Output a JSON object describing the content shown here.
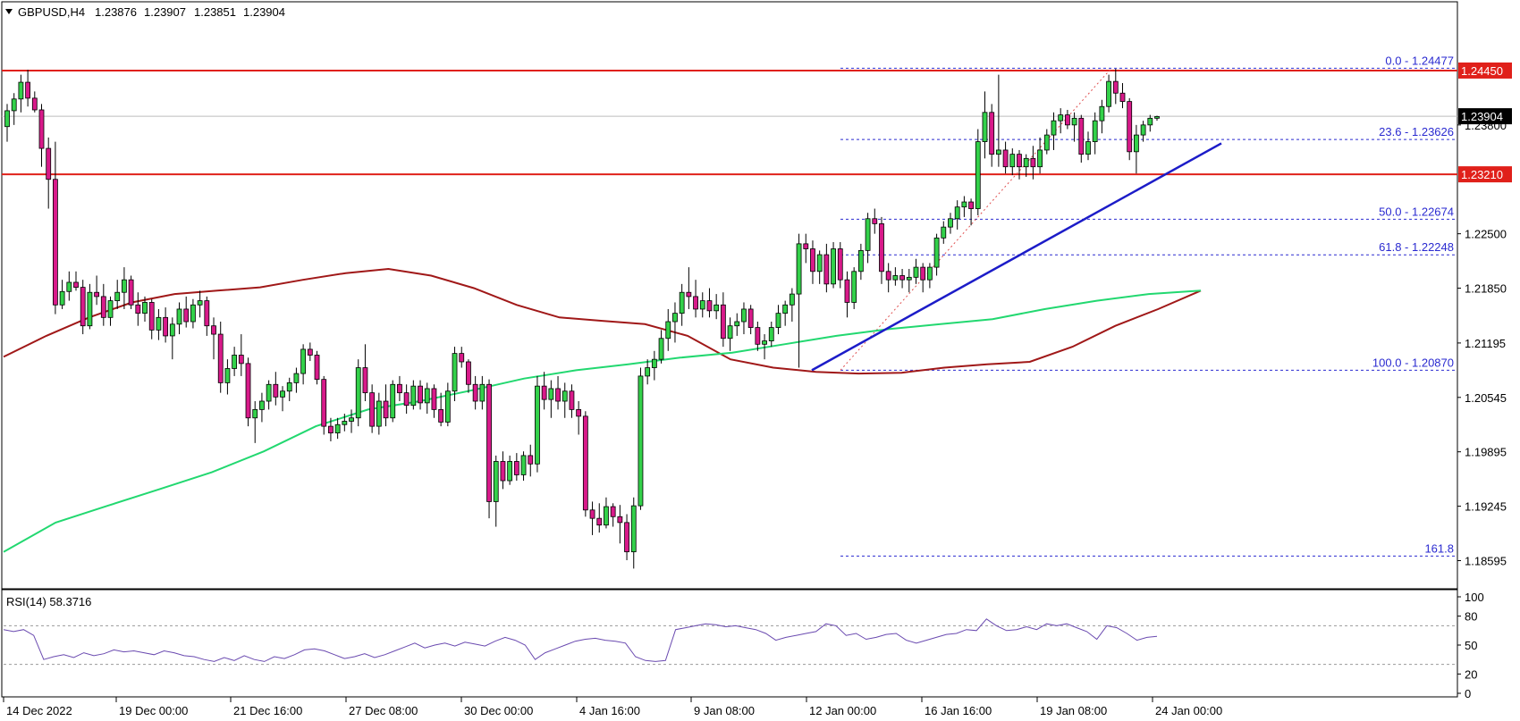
{
  "chart_data": {
    "type": "candlestick",
    "symbol": "GBPUSD,H4",
    "ohlc_header": [
      "1.23876",
      "1.23907",
      "1.23851",
      "1.23904"
    ],
    "price_axis_ticks": [
      "1.24450",
      "1.23800",
      "1.23210",
      "1.22500",
      "1.21850",
      "1.21195",
      "1.20545",
      "1.19895",
      "1.19245",
      "1.18595"
    ],
    "current_price_label": "1.23904",
    "price_range": [
      1.1828,
      1.2525
    ],
    "horizontal_levels": [
      {
        "price": 1.2445,
        "label": "1.24450",
        "color": "#e0201a"
      },
      {
        "price": 1.2321,
        "label": "1.23210",
        "color": "#e0201a"
      }
    ],
    "fib_levels": [
      {
        "label": "0.0 - 1.24477",
        "price": 1.24477
      },
      {
        "label": "23.6 - 1.23626",
        "price": 1.23626
      },
      {
        "label": "50.0 - 1.22674",
        "price": 1.22674
      },
      {
        "label": "61.8 - 1.22248",
        "price": 1.22248
      },
      {
        "label": "100.0 - 1.20870",
        "price": 1.2087
      },
      {
        "label": "161.8",
        "price": 1.1865
      }
    ],
    "time_labels": [
      "14 Dec 2022",
      "19 Dec 00:00",
      "21 Dec 16:00",
      "27 Dec 08:00",
      "30 Dec 00:00",
      "4 Jan 16:00",
      "9 Jan 08:00",
      "12 Jan 00:00",
      "16 Jan 16:00",
      "19 Jan 08:00",
      "24 Jan 00:00"
    ],
    "trendline": {
      "from_price": 1.2087,
      "to_price": 1.2358,
      "color": "#1c1cc8"
    },
    "ma_slow_color": "#a01818",
    "ma_fast_color": "#22d870",
    "ma_slow_closes": [
      1.2103,
      1.2128,
      1.215,
      1.2168,
      1.2178,
      1.2182,
      1.2186,
      1.2195,
      1.2203,
      1.2208,
      1.22,
      1.2185,
      1.2165,
      1.215,
      1.2146,
      1.2142,
      1.2128,
      1.21,
      1.209,
      1.2085,
      1.2083,
      1.2084,
      1.209,
      1.2094,
      1.2097,
      1.2115,
      1.214,
      1.216,
      1.2182
    ],
    "ma_fast_closes": [
      1.187,
      1.1905,
      1.1925,
      1.1945,
      1.1965,
      1.199,
      1.202,
      1.204,
      1.205,
      1.2063,
      1.2077,
      1.2087,
      1.2094,
      1.2102,
      1.2108,
      1.2118,
      1.2128,
      1.2136,
      1.2142,
      1.2148,
      1.216,
      1.217,
      1.2178,
      1.2182
    ],
    "candles": [
      [
        1.2378,
        1.2405,
        1.236,
        1.2397
      ],
      [
        1.2397,
        1.2418,
        1.238,
        1.2411
      ],
      [
        1.2411,
        1.244,
        1.2395,
        1.2431
      ],
      [
        1.2431,
        1.2446,
        1.2402,
        1.2412
      ],
      [
        1.2412,
        1.242,
        1.2395,
        1.2398
      ],
      [
        1.2398,
        1.2405,
        1.233,
        1.2352
      ],
      [
        1.2352,
        1.2365,
        1.228,
        1.2315
      ],
      [
        1.2315,
        1.236,
        1.2154,
        1.2165
      ],
      [
        1.2165,
        1.2195,
        1.216,
        1.2181
      ],
      [
        1.2181,
        1.2205,
        1.217,
        1.2192
      ],
      [
        1.2192,
        1.2205,
        1.2182,
        1.2186
      ],
      [
        1.2186,
        1.2195,
        1.213,
        1.214
      ],
      [
        1.214,
        1.219,
        1.2136,
        1.218
      ],
      [
        1.218,
        1.22,
        1.2165,
        1.2175
      ],
      [
        1.2175,
        1.219,
        1.214,
        1.215
      ],
      [
        1.215,
        1.2175,
        1.214,
        1.217
      ],
      [
        1.217,
        1.2195,
        1.216,
        1.218
      ],
      [
        1.218,
        1.221,
        1.216,
        1.2195
      ],
      [
        1.2195,
        1.22,
        1.216,
        1.2165
      ],
      [
        1.2165,
        1.218,
        1.214,
        1.2155
      ],
      [
        1.2155,
        1.2175,
        1.2145,
        1.2168
      ],
      [
        1.2168,
        1.2172,
        1.2124,
        1.2135
      ],
      [
        1.2135,
        1.216,
        1.2123,
        1.215
      ],
      [
        1.215,
        1.2162,
        1.212,
        1.2128
      ],
      [
        1.2128,
        1.215,
        1.21,
        1.2142
      ],
      [
        1.2142,
        1.2168,
        1.213,
        1.216
      ],
      [
        1.216,
        1.2175,
        1.2138,
        1.2145
      ],
      [
        1.2145,
        1.2172,
        1.2137,
        1.2165
      ],
      [
        1.2165,
        1.2182,
        1.215,
        1.217
      ],
      [
        1.217,
        1.2175,
        1.2128,
        1.214
      ],
      [
        1.214,
        1.215,
        1.21,
        1.213
      ],
      [
        1.213,
        1.2145,
        1.206,
        1.2072
      ],
      [
        1.2072,
        1.21,
        1.2058,
        1.2089
      ],
      [
        1.2089,
        1.2115,
        1.208,
        1.2105
      ],
      [
        1.2105,
        1.213,
        1.208,
        1.2095
      ],
      [
        1.2095,
        1.2102,
        1.202,
        1.203
      ],
      [
        1.203,
        1.205,
        1.2,
        1.204
      ],
      [
        1.204,
        1.206,
        1.2025,
        1.205
      ],
      [
        1.205,
        1.2075,
        1.204,
        1.207
      ],
      [
        1.207,
        1.2085,
        1.2045,
        1.2055
      ],
      [
        1.2055,
        1.2068,
        1.2038,
        1.2062
      ],
      [
        1.2062,
        1.2078,
        1.205,
        1.2072
      ],
      [
        1.2072,
        1.209,
        1.206,
        1.2083
      ],
      [
        1.2083,
        1.2118,
        1.207,
        1.2112
      ],
      [
        1.2112,
        1.212,
        1.2098,
        1.2105
      ],
      [
        1.2105,
        1.211,
        1.207,
        1.2076
      ],
      [
        1.2076,
        1.208,
        1.201,
        1.202
      ],
      [
        1.202,
        1.203,
        1.2002,
        1.2012
      ],
      [
        1.2012,
        1.203,
        1.2005,
        1.2022
      ],
      [
        1.2022,
        1.2035,
        1.2014,
        1.2026
      ],
      [
        1.2026,
        1.204,
        1.2012,
        1.203
      ],
      [
        1.203,
        1.21,
        1.202,
        1.209
      ],
      [
        1.209,
        1.2118,
        1.205,
        1.206
      ],
      [
        1.206,
        1.207,
        1.2012,
        1.202
      ],
      [
        1.202,
        1.206,
        1.201,
        1.205
      ],
      [
        1.205,
        1.207,
        1.202,
        1.203
      ],
      [
        1.203,
        1.2075,
        1.2025,
        1.207
      ],
      [
        1.207,
        1.208,
        1.205,
        1.206
      ],
      [
        1.206,
        1.207,
        1.2035,
        1.2045
      ],
      [
        1.2045,
        1.2075,
        1.204,
        1.2068
      ],
      [
        1.2068,
        1.2075,
        1.204,
        1.2048
      ],
      [
        1.2048,
        1.2072,
        1.2035,
        1.2065
      ],
      [
        1.2065,
        1.207,
        1.203,
        1.204
      ],
      [
        1.204,
        1.206,
        1.202,
        1.2025
      ],
      [
        1.2025,
        1.2072,
        1.202,
        1.2062
      ],
      [
        1.2062,
        1.2115,
        1.205,
        1.2107
      ],
      [
        1.2107,
        1.2115,
        1.209,
        1.2097
      ],
      [
        1.2097,
        1.21,
        1.206,
        1.207
      ],
      [
        1.207,
        1.208,
        1.204,
        1.205
      ],
      [
        1.205,
        1.208,
        1.204,
        1.207
      ],
      [
        1.207,
        1.2076,
        1.191,
        1.193
      ],
      [
        1.193,
        1.1985,
        1.19,
        1.1978
      ],
      [
        1.1978,
        1.199,
        1.1945,
        1.1955
      ],
      [
        1.1955,
        1.1985,
        1.195,
        1.1978
      ],
      [
        1.1978,
        1.1988,
        1.1955,
        1.1962
      ],
      [
        1.1962,
        1.199,
        1.1955,
        1.1985
      ],
      [
        1.1985,
        1.1998,
        1.196,
        1.1975
      ],
      [
        1.1975,
        1.208,
        1.1965,
        1.2068
      ],
      [
        1.2068,
        1.2085,
        1.204,
        1.2052
      ],
      [
        1.2052,
        1.2075,
        1.203,
        1.2065
      ],
      [
        1.2065,
        1.208,
        1.204,
        1.205
      ],
      [
        1.205,
        1.2072,
        1.203,
        1.2062
      ],
      [
        1.2062,
        1.207,
        1.203,
        1.204
      ],
      [
        1.204,
        1.205,
        1.201,
        1.2032
      ],
      [
        1.2032,
        1.2038,
        1.1912,
        1.192
      ],
      [
        1.192,
        1.193,
        1.189,
        1.191
      ],
      [
        1.191,
        1.1928,
        1.1893,
        1.1902
      ],
      [
        1.1902,
        1.1935,
        1.1898,
        1.1924
      ],
      [
        1.1924,
        1.1928,
        1.19,
        1.1912
      ],
      [
        1.1912,
        1.1926,
        1.188,
        1.1905
      ],
      [
        1.1905,
        1.1915,
        1.186,
        1.187
      ],
      [
        1.187,
        1.1935,
        1.185,
        1.1925
      ],
      [
        1.1925,
        1.209,
        1.192,
        1.208
      ],
      [
        1.208,
        1.21,
        1.207,
        1.209
      ],
      [
        1.209,
        1.211,
        1.2075,
        1.21
      ],
      [
        1.21,
        1.2135,
        1.2095,
        1.2125
      ],
      [
        1.2125,
        1.216,
        1.211,
        1.2145
      ],
      [
        1.2145,
        1.2168,
        1.212,
        1.2155
      ],
      [
        1.2155,
        1.219,
        1.214,
        1.218
      ],
      [
        1.218,
        1.221,
        1.216,
        1.2175
      ],
      [
        1.2175,
        1.2195,
        1.215,
        1.216
      ],
      [
        1.216,
        1.218,
        1.215,
        1.217
      ],
      [
        1.217,
        1.2185,
        1.215,
        1.2158
      ],
      [
        1.2158,
        1.2178,
        1.2148,
        1.2165
      ],
      [
        1.2165,
        1.218,
        1.2115,
        1.2125
      ],
      [
        1.2125,
        1.215,
        1.211,
        1.214
      ],
      [
        1.214,
        1.2155,
        1.2128,
        1.2145
      ],
      [
        1.2145,
        1.2168,
        1.213,
        1.216
      ],
      [
        1.216,
        1.2165,
        1.213,
        1.2138
      ],
      [
        1.2138,
        1.2145,
        1.211,
        1.2118
      ],
      [
        1.2118,
        1.213,
        1.21,
        1.2122
      ],
      [
        1.2122,
        1.2145,
        1.2115,
        1.2138
      ],
      [
        1.2138,
        1.2165,
        1.213,
        1.2155
      ],
      [
        1.2155,
        1.217,
        1.214,
        1.2165
      ],
      [
        1.2165,
        1.2185,
        1.2145,
        1.2178
      ],
      [
        1.2178,
        1.225,
        1.209,
        1.2238
      ],
      [
        1.2238,
        1.225,
        1.2215,
        1.2232
      ],
      [
        1.2232,
        1.2242,
        1.219,
        1.2205
      ],
      [
        1.2205,
        1.223,
        1.219,
        1.2225
      ],
      [
        1.2225,
        1.2238,
        1.218,
        1.219
      ],
      [
        1.219,
        1.224,
        1.2185,
        1.2232
      ],
      [
        1.2232,
        1.224,
        1.2185,
        1.2195
      ],
      [
        1.2195,
        1.2205,
        1.215,
        1.2168
      ],
      [
        1.2168,
        1.221,
        1.216,
        1.2205
      ],
      [
        1.2205,
        1.2238,
        1.2195,
        1.223
      ],
      [
        1.223,
        1.2275,
        1.2215,
        1.2268
      ],
      [
        1.2268,
        1.228,
        1.225,
        1.2262
      ],
      [
        1.2262,
        1.227,
        1.219,
        1.2205
      ],
      [
        1.2205,
        1.2215,
        1.218,
        1.2195
      ],
      [
        1.2195,
        1.221,
        1.2188,
        1.22
      ],
      [
        1.22,
        1.2208,
        1.2185,
        1.2195
      ],
      [
        1.2195,
        1.2208,
        1.218,
        1.2198
      ],
      [
        1.2198,
        1.222,
        1.219,
        1.221
      ],
      [
        1.221,
        1.2215,
        1.218,
        1.2195
      ],
      [
        1.2195,
        1.2215,
        1.2185,
        1.221
      ],
      [
        1.221,
        1.225,
        1.22,
        1.2245
      ],
      [
        1.2245,
        1.2265,
        1.2238,
        1.2258
      ],
      [
        1.2258,
        1.2275,
        1.225,
        1.2268
      ],
      [
        1.2268,
        1.229,
        1.2255,
        1.2282
      ],
      [
        1.2282,
        1.2295,
        1.227,
        1.2288
      ],
      [
        1.2288,
        1.2292,
        1.226,
        1.228
      ],
      [
        1.228,
        1.2375,
        1.2272,
        1.236
      ],
      [
        1.236,
        1.242,
        1.234,
        1.2395
      ],
      [
        1.2395,
        1.2405,
        1.233,
        1.2345
      ],
      [
        1.2345,
        1.244,
        1.233,
        1.235
      ],
      [
        1.235,
        1.236,
        1.2322,
        1.233
      ],
      [
        1.233,
        1.2352,
        1.232,
        1.2345
      ],
      [
        1.2345,
        1.235,
        1.2315,
        1.233
      ],
      [
        1.233,
        1.2345,
        1.2318,
        1.234
      ],
      [
        1.234,
        1.2355,
        1.2315,
        1.233
      ],
      [
        1.233,
        1.2365,
        1.2322,
        1.235
      ],
      [
        1.235,
        1.2375,
        1.2345,
        1.2368
      ],
      [
        1.2368,
        1.2395,
        1.235,
        1.2385
      ],
      [
        1.2385,
        1.24,
        1.237,
        1.2392
      ],
      [
        1.2392,
        1.2398,
        1.2375,
        1.238
      ],
      [
        1.238,
        1.2395,
        1.236,
        1.2388
      ],
      [
        1.2388,
        1.2392,
        1.2335,
        1.2345
      ],
      [
        1.2345,
        1.2372,
        1.2338,
        1.236
      ],
      [
        1.236,
        1.2395,
        1.2345,
        1.2385
      ],
      [
        1.2385,
        1.241,
        1.237,
        1.2402
      ],
      [
        1.2402,
        1.244,
        1.2395,
        1.2432
      ],
      [
        1.2432,
        1.2447,
        1.2405,
        1.2418
      ],
      [
        1.2418,
        1.243,
        1.24,
        1.2408
      ],
      [
        1.2408,
        1.2412,
        1.2338,
        1.2348
      ],
      [
        1.2348,
        1.238,
        1.2322,
        1.2368
      ],
      [
        1.2368,
        1.2385,
        1.236,
        1.238
      ],
      [
        1.238,
        1.2392,
        1.2372,
        1.2388
      ],
      [
        1.2388,
        1.2391,
        1.2385,
        1.239
      ]
    ]
  },
  "rsi": {
    "label": "RSI(14) 58.3716",
    "ticks": [
      "100",
      "80",
      "50",
      "20",
      "0"
    ],
    "levels": [
      70,
      30
    ],
    "color": "#6a4ab0",
    "values": [
      66,
      64,
      66,
      60,
      35,
      38,
      40,
      37,
      42,
      39,
      41,
      45,
      43,
      44,
      42,
      40,
      44,
      42,
      39,
      38,
      35,
      33,
      37,
      34,
      39,
      35,
      33,
      38,
      36,
      40,
      45,
      46,
      44,
      40,
      36,
      38,
      41,
      37,
      40,
      44,
      48,
      52,
      47,
      50,
      52,
      49,
      53,
      51,
      49,
      54,
      58,
      55,
      50,
      35,
      42,
      46,
      50,
      54,
      56,
      57,
      55,
      54,
      52,
      38,
      34,
      33,
      34,
      66,
      68,
      70,
      72,
      71,
      69,
      70,
      68,
      66,
      62,
      55,
      58,
      60,
      62,
      64,
      72,
      70,
      60,
      62,
      56,
      58,
      61,
      62,
      55,
      52,
      55,
      58,
      61,
      62,
      66,
      65,
      77,
      70,
      65,
      66,
      69,
      66,
      72,
      70,
      72,
      68,
      64,
      56,
      70,
      68,
      62,
      55,
      58,
      59
    ]
  }
}
